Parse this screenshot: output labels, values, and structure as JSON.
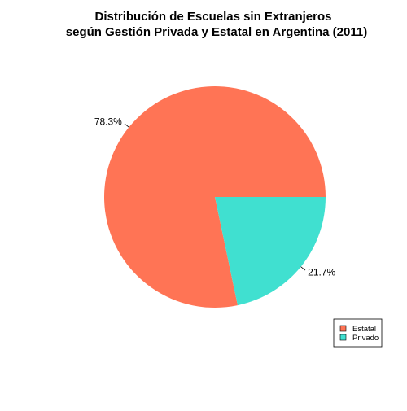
{
  "chart_data": {
    "type": "pie",
    "title_lines": [
      "Distribución de Escuelas sin Extranjeros",
      "según Gestión Privada y Estatal en Argentina (2011)"
    ],
    "slices": [
      {
        "name": "Estatal",
        "value": 78.3,
        "label": "78.3%",
        "color": "#FF7455"
      },
      {
        "name": "Privado",
        "value": 21.7,
        "label": "21.7%",
        "color": "#40E0D0"
      }
    ],
    "legend": {
      "position": "bottom-right",
      "entries": [
        "Estatal",
        "Privado"
      ]
    }
  }
}
